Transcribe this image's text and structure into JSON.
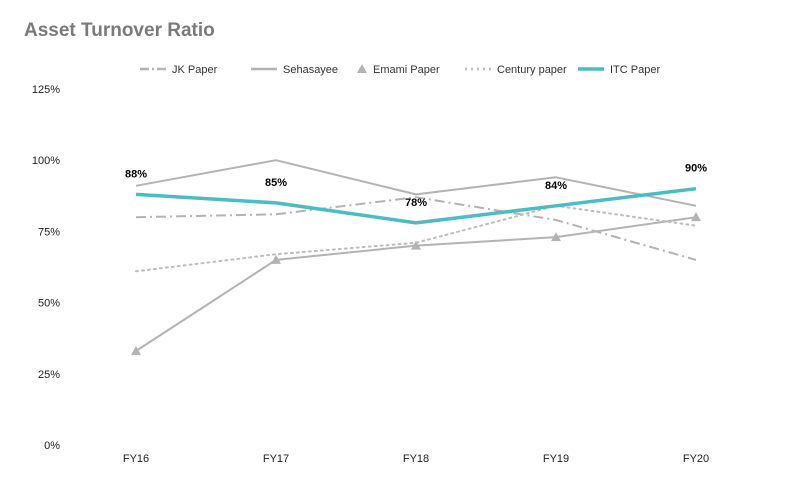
{
  "chart_data": {
    "type": "line",
    "title": "Asset Turnover Ratio",
    "categories": [
      "FY16",
      "FY17",
      "FY18",
      "FY19",
      "FY20"
    ],
    "y_ticks": [
      "0%",
      "25%",
      "50%",
      "75%",
      "100%",
      "125%"
    ],
    "ylim": [
      0,
      125
    ],
    "grid": false,
    "legend_position": "top",
    "series": [
      {
        "name": "JK Paper",
        "values": [
          80,
          81,
          87,
          79,
          65
        ],
        "color": "#b3b3b3",
        "style": "dash-dot"
      },
      {
        "name": "Sehasayee",
        "values": [
          91,
          100,
          88,
          94,
          84
        ],
        "color": "#b3b3b3",
        "style": "solid"
      },
      {
        "name": "Emami Paper",
        "values": [
          33,
          65,
          70,
          73,
          80
        ],
        "color": "#b3b3b3",
        "style": "triangle-markers"
      },
      {
        "name": "Century paper",
        "values": [
          61,
          67,
          71,
          84,
          77
        ],
        "color": "#bdbdbd",
        "style": "dotted"
      },
      {
        "name": "ITC Paper",
        "values": [
          88,
          85,
          78,
          84,
          90
        ],
        "color": "#4bbcc4",
        "style": "thick"
      }
    ],
    "data_labels": [
      "88%",
      "85%",
      "78%",
      "84%",
      "90%"
    ]
  }
}
